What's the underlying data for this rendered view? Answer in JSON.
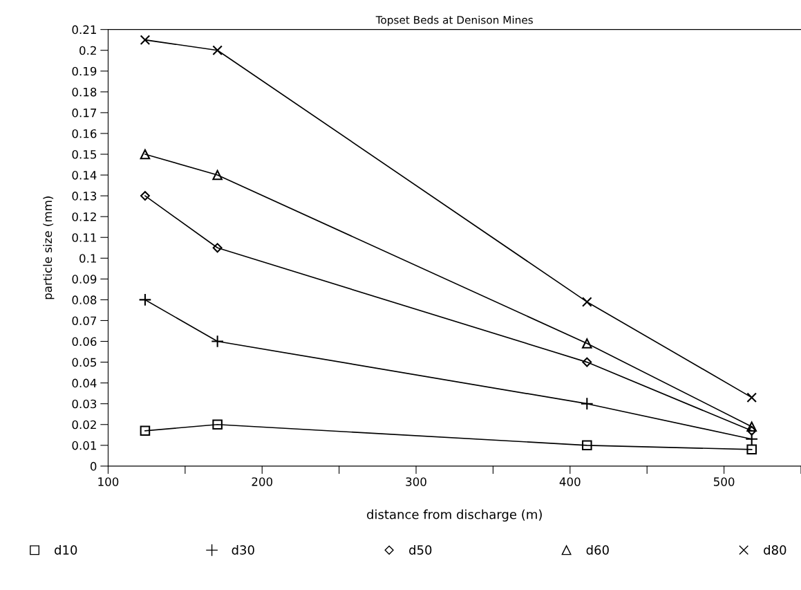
{
  "chart_data": {
    "type": "line",
    "title": "Topset Beds at Denison Mines",
    "xlabel": "distance from discharge (m)",
    "ylabel": "particle size (mm)",
    "x": [
      124,
      171,
      411,
      518
    ],
    "series": [
      {
        "name": "d10",
        "color": "#000000",
        "marker": "square",
        "values": [
          0.017,
          0.02,
          0.01,
          0.008
        ]
      },
      {
        "name": "d30",
        "color": "#000000",
        "marker": "plus",
        "values": [
          0.08,
          0.06,
          0.03,
          0.013
        ]
      },
      {
        "name": "d50",
        "color": "#000000",
        "marker": "diamond",
        "values": [
          0.13,
          0.105,
          0.05,
          0.017
        ]
      },
      {
        "name": "d60",
        "color": "#000000",
        "marker": "triangle",
        "values": [
          0.15,
          0.14,
          0.059,
          0.019
        ]
      },
      {
        "name": "d80",
        "color": "#000000",
        "marker": "cross",
        "values": [
          0.205,
          0.2,
          0.079,
          0.033
        ]
      }
    ],
    "xlim": [
      100,
      550
    ],
    "xticks": [
      100,
      {
        "value": 150,
        "label": null
      },
      200,
      {
        "value": 250,
        "label": null
      },
      300,
      {
        "value": 350,
        "label": null
      },
      400,
      {
        "value": 450,
        "label": null
      },
      500,
      {
        "value": 550,
        "label": null
      }
    ],
    "ylim": [
      0,
      0.21
    ],
    "yticks": [
      0,
      0.01,
      0.02,
      0.03,
      0.04,
      0.05,
      0.06,
      0.07,
      0.08,
      0.09,
      0.1,
      0.11,
      0.12,
      0.13,
      0.14,
      0.15,
      0.16,
      0.17,
      0.18,
      0.19,
      0.2,
      0.21
    ],
    "grid": false,
    "legend": "bottom",
    "line_style": "solid"
  }
}
